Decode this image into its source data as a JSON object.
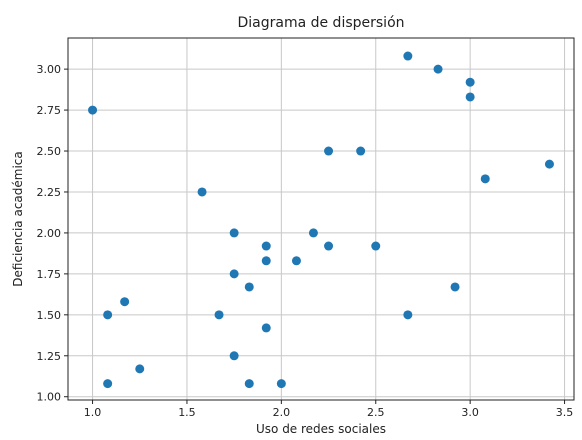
{
  "chart_data": {
    "type": "scatter",
    "title": "Diagrama de dispersión",
    "xlabel": "Uso de redes sociales",
    "ylabel": "Deficiencia académica",
    "xlim": [
      0.87,
      3.55
    ],
    "ylim": [
      0.98,
      3.19
    ],
    "xticks": [
      1.0,
      1.5,
      2.0,
      2.5,
      3.0,
      3.5
    ],
    "xtick_labels": [
      "1.0",
      "1.5",
      "2.0",
      "2.5",
      "3.0",
      "3.5"
    ],
    "yticks": [
      1.0,
      1.25,
      1.5,
      1.75,
      2.0,
      2.25,
      2.5,
      2.75,
      3.0
    ],
    "ytick_labels": [
      "1.00",
      "1.25",
      "1.50",
      "1.75",
      "2.00",
      "2.25",
      "2.50",
      "2.75",
      "3.00"
    ],
    "grid": true,
    "marker_color": "#1f77b4",
    "points": [
      {
        "x": 1.0,
        "y": 2.75
      },
      {
        "x": 1.08,
        "y": 1.5
      },
      {
        "x": 1.08,
        "y": 1.08
      },
      {
        "x": 1.17,
        "y": 1.58
      },
      {
        "x": 1.25,
        "y": 1.17
      },
      {
        "x": 1.58,
        "y": 2.25
      },
      {
        "x": 1.67,
        "y": 1.5
      },
      {
        "x": 1.75,
        "y": 2.0
      },
      {
        "x": 1.75,
        "y": 1.75
      },
      {
        "x": 1.75,
        "y": 1.25
      },
      {
        "x": 1.83,
        "y": 1.67
      },
      {
        "x": 1.83,
        "y": 1.08
      },
      {
        "x": 1.92,
        "y": 1.92
      },
      {
        "x": 1.92,
        "y": 1.83
      },
      {
        "x": 1.92,
        "y": 1.42
      },
      {
        "x": 2.0,
        "y": 1.08
      },
      {
        "x": 2.08,
        "y": 1.83
      },
      {
        "x": 2.17,
        "y": 2.0
      },
      {
        "x": 2.25,
        "y": 2.5
      },
      {
        "x": 2.25,
        "y": 1.92
      },
      {
        "x": 2.42,
        "y": 2.5
      },
      {
        "x": 2.5,
        "y": 1.92
      },
      {
        "x": 2.67,
        "y": 3.08
      },
      {
        "x": 2.67,
        "y": 1.5
      },
      {
        "x": 2.83,
        "y": 3.0
      },
      {
        "x": 2.92,
        "y": 1.67
      },
      {
        "x": 3.0,
        "y": 2.92
      },
      {
        "x": 3.0,
        "y": 2.83
      },
      {
        "x": 3.08,
        "y": 2.33
      },
      {
        "x": 3.42,
        "y": 2.42
      }
    ]
  }
}
